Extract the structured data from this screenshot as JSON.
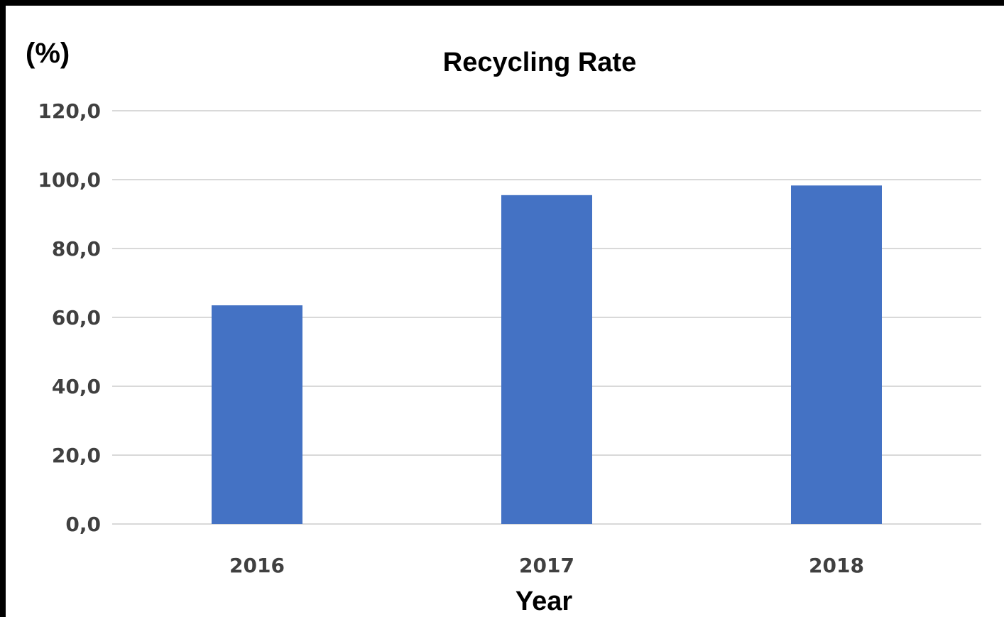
{
  "chart_data": {
    "type": "bar",
    "title": "Recycling Rate",
    "ylabel": "(%)",
    "xlabel": "Year",
    "categories": [
      "2016",
      "2017",
      "2018"
    ],
    "values": [
      63.5,
      95.5,
      98.3
    ],
    "ylim": [
      0,
      120
    ],
    "yticks": [
      0,
      20,
      40,
      60,
      80,
      100,
      120
    ],
    "ytick_labels": [
      "0,0",
      "20,0",
      "40,0",
      "60,0",
      "80,0",
      "100,0",
      "120,0"
    ],
    "grid": true,
    "legend": "none",
    "bar_color": "#4472C4",
    "grid_color": "#D9D9D9"
  }
}
